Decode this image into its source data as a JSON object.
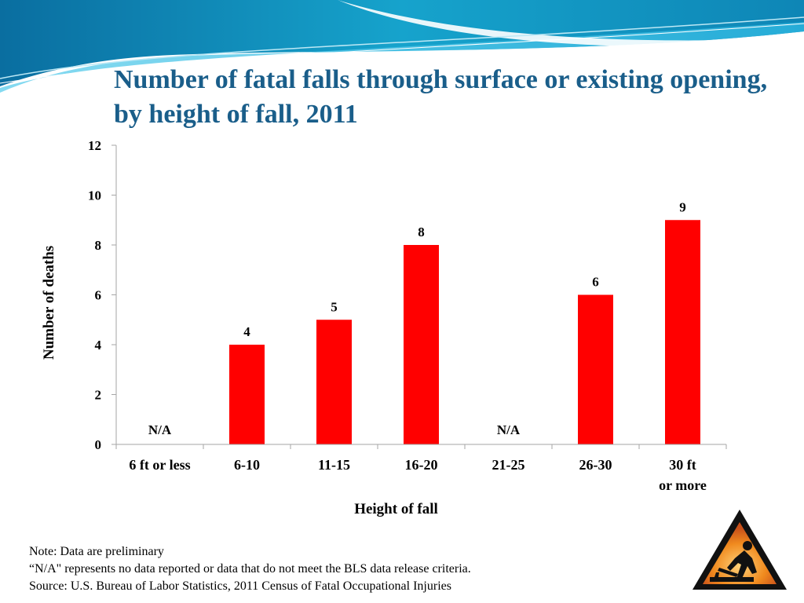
{
  "colors": {
    "title": "#1a5e8a",
    "bar": "#ff0000",
    "axis": "#a6a6a6",
    "text": "#000000"
  },
  "title": "Number of fatal falls through surface or existing opening, by height of fall, 2011",
  "chart_data": {
    "type": "bar",
    "xlabel": "Height of fall",
    "ylabel": "Number of deaths",
    "categories": [
      "6 ft or less",
      "6-10",
      "11-15",
      "16-20",
      "21-25",
      "26-30",
      "30 ft or more"
    ],
    "values": [
      null,
      4,
      5,
      8,
      null,
      6,
      9
    ],
    "data_labels": [
      "N/A",
      "4",
      "5",
      "8",
      "N/A",
      "6",
      "9"
    ],
    "ylim": [
      0,
      12
    ],
    "yticks": [
      "0",
      "2",
      "4",
      "6",
      "8",
      "10",
      "12"
    ],
    "grid": false,
    "legend": "none"
  },
  "notes": [
    "Note: Data are preliminary",
    "“N/A\" represents no data reported or data that do not meet the BLS data release criteria.",
    "Source: U.S. Bureau of Labor Statistics, 2011 Census of Fatal Occupational Injuries"
  ],
  "icon": "construction-worker-warning-icon"
}
